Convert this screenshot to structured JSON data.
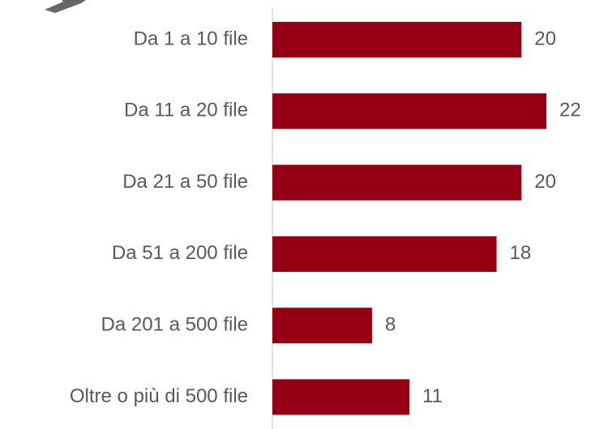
{
  "chart_data": {
    "type": "bar",
    "orientation": "horizontal",
    "categories": [
      "Da 1 a 10 file",
      "Da 11 a 20 file",
      "Da 21 a 50 file",
      "Da 51 a 200 file",
      "Da 201 a 500 file",
      "Oltre o più di 500 file"
    ],
    "values": [
      20,
      22,
      20,
      18,
      8,
      11
    ],
    "color": "#960014"
  }
}
